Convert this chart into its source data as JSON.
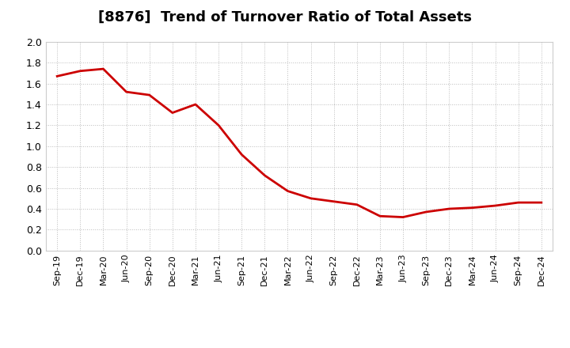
{
  "title": "[8876]  Trend of Turnover Ratio of Total Assets",
  "title_fontsize": 13,
  "line_color": "#cc0000",
  "line_width": 2.0,
  "background_color": "#ffffff",
  "grid_color": "#aaaaaa",
  "ylim": [
    0.0,
    2.0
  ],
  "yticks": [
    0.0,
    0.2,
    0.4,
    0.6,
    0.8,
    1.0,
    1.2,
    1.4,
    1.6,
    1.8,
    2.0
  ],
  "x_labels": [
    "Sep-19",
    "Dec-19",
    "Mar-20",
    "Jun-20",
    "Sep-20",
    "Dec-20",
    "Mar-21",
    "Jun-21",
    "Sep-21",
    "Dec-21",
    "Mar-22",
    "Jun-22",
    "Sep-22",
    "Dec-22",
    "Mar-23",
    "Jun-23",
    "Sep-23",
    "Dec-23",
    "Mar-24",
    "Jun-24",
    "Sep-24",
    "Dec-24"
  ],
  "values": [
    1.67,
    1.72,
    1.74,
    1.52,
    1.49,
    1.32,
    1.4,
    1.2,
    0.92,
    0.72,
    0.57,
    0.5,
    0.47,
    0.44,
    0.33,
    0.32,
    0.37,
    0.4,
    0.41,
    0.43,
    0.46,
    0.46
  ]
}
